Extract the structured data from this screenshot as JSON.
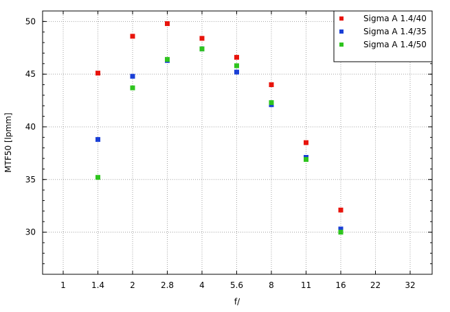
{
  "chart_data": {
    "type": "scatter",
    "title": "",
    "xlabel": "f/",
    "ylabel": "MTF50 [lpmm]",
    "categories": [
      "1",
      "1.4",
      "2",
      "2.8",
      "4",
      "5.6",
      "8",
      "11",
      "16",
      "22",
      "32"
    ],
    "ylim": [
      26,
      51
    ],
    "yticks": [
      30,
      35,
      40,
      45,
      50
    ],
    "grid": true,
    "legend_position": "top-right",
    "series": [
      {
        "name": "Sigma A 1.4/40",
        "color": "#e8140c",
        "points": [
          {
            "x": "1.4",
            "y": 45.1
          },
          {
            "x": "2",
            "y": 48.6
          },
          {
            "x": "2.8",
            "y": 49.8
          },
          {
            "x": "4",
            "y": 48.4
          },
          {
            "x": "5.6",
            "y": 46.6
          },
          {
            "x": "8",
            "y": 44.0
          },
          {
            "x": "11",
            "y": 38.5
          },
          {
            "x": "16",
            "y": 32.1
          }
        ]
      },
      {
        "name": "Sigma A 1.4/35",
        "color": "#1a3fd6",
        "points": [
          {
            "x": "1.4",
            "y": 38.8
          },
          {
            "x": "2",
            "y": 44.8
          },
          {
            "x": "2.8",
            "y": 46.3
          },
          {
            "x": "4",
            "y": 47.4
          },
          {
            "x": "5.6",
            "y": 45.2
          },
          {
            "x": "8",
            "y": 42.1
          },
          {
            "x": "11",
            "y": 37.1
          },
          {
            "x": "16",
            "y": 30.3
          }
        ]
      },
      {
        "name": "Sigma A 1.4/50",
        "color": "#2ec41e",
        "points": [
          {
            "x": "1.4",
            "y": 35.2
          },
          {
            "x": "2",
            "y": 43.7
          },
          {
            "x": "2.8",
            "y": 46.4
          },
          {
            "x": "4",
            "y": 47.4
          },
          {
            "x": "5.6",
            "y": 45.8
          },
          {
            "x": "8",
            "y": 42.3
          },
          {
            "x": "11",
            "y": 36.9
          },
          {
            "x": "16",
            "y": 30.0
          }
        ]
      }
    ]
  }
}
